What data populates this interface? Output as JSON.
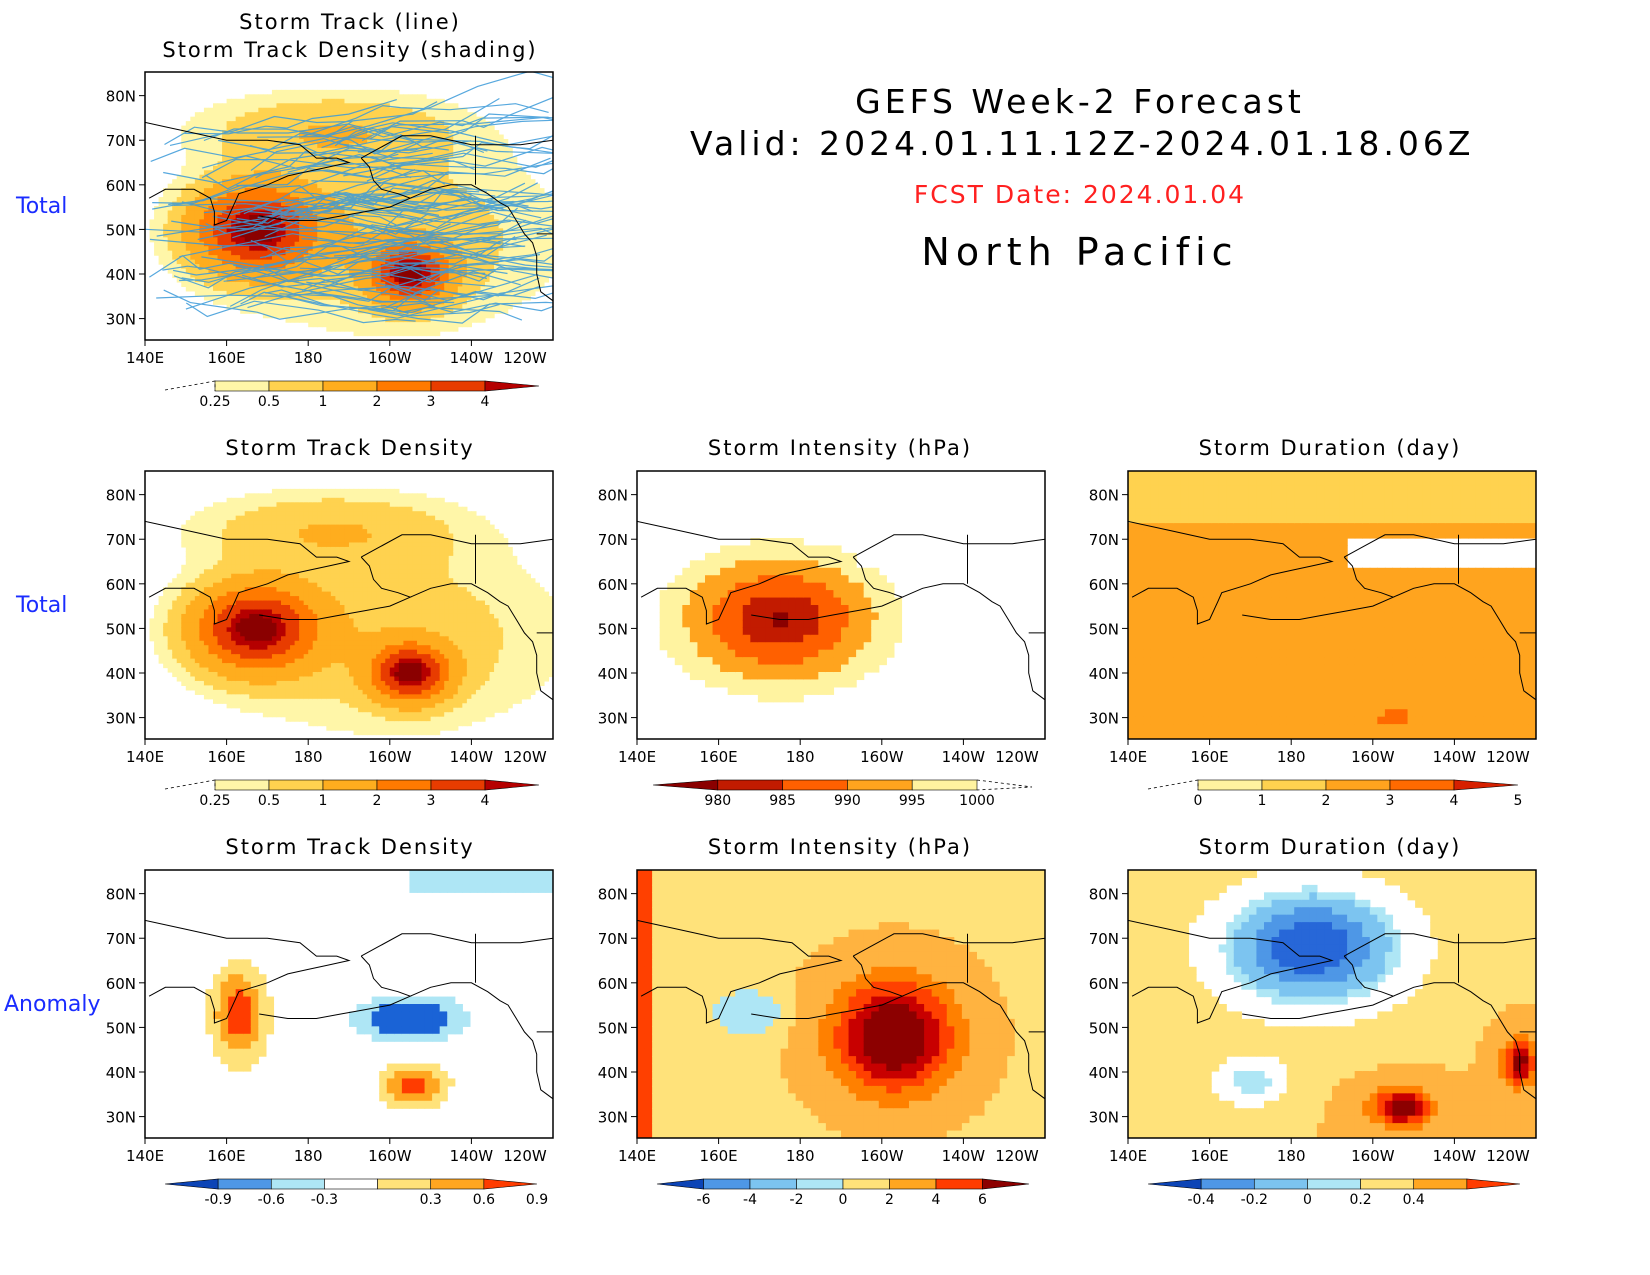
{
  "header": {
    "line1": "GEFS Week-2 Forecast",
    "line2": "Valid: 2024.01.11.12Z-2024.01.18.06Z",
    "fcst": "FCST Date: 2024.01.04",
    "region": "North Pacific"
  },
  "row_labels": {
    "top": "Total",
    "middle": "Total",
    "bottom": "Anomaly"
  },
  "axes": {
    "lat_labels": [
      "80N",
      "70N",
      "60N",
      "50N",
      "40N",
      "30N"
    ],
    "lon_labels": [
      "140E",
      "160E",
      "180",
      "160W",
      "140W",
      "120W"
    ]
  },
  "colors": {
    "track_line": "#3a9ad9",
    "density": [
      "#fff6a8",
      "#ffd24f",
      "#ffad1e",
      "#ff7a00",
      "#e83c00",
      "#b50000",
      "#8a0000"
    ],
    "anomaly_warm": [
      "#ffe27a",
      "#ffb340",
      "#ff8000",
      "#ff4000",
      "#c80000",
      "#8c0000"
    ],
    "anomaly_cool": [
      "#aee6f5",
      "#7cc4f0",
      "#4e97e6",
      "#2767d8",
      "#0c44b6"
    ]
  },
  "chart_data": [
    {
      "id": "storm-track-total",
      "type": "heatmap",
      "title": "Storm Track (line)\nStorm Track Density (shading)",
      "title_lines": [
        "Storm Track (line)",
        "Storm Track Density (shading)"
      ],
      "row": "Total",
      "colorbar": [
        "0.25",
        "0.5",
        "1",
        "2",
        "3",
        "4"
      ],
      "centers": [
        {
          "name": "west-pacific",
          "lon": 167,
          "lat": 50,
          "peak": 4.5
        },
        {
          "name": "gulf-of-alaska",
          "lon": 205,
          "lat": 40,
          "peak": 4.3
        }
      ]
    },
    {
      "id": "density-total",
      "type": "heatmap",
      "title": "Storm Track Density",
      "row": "Total",
      "colorbar": [
        "0.25",
        "0.5",
        "1",
        "2",
        "3",
        "4"
      ],
      "centers": [
        {
          "name": "west-pacific",
          "lon": 167,
          "lat": 50,
          "peak": 4.5
        },
        {
          "name": "gulf-of-alaska",
          "lon": 205,
          "lat": 40,
          "peak": 4.3
        }
      ]
    },
    {
      "id": "intensity-total",
      "type": "heatmap",
      "title": "Storm Intensity (hPa)",
      "row": "Total",
      "colorbar": [
        "980",
        "985",
        "990",
        "995",
        "1000"
      ],
      "minimum": {
        "lon": 175,
        "lat": 52,
        "value": 978
      }
    },
    {
      "id": "duration-total",
      "type": "heatmap",
      "title": "Storm Duration (day)",
      "row": "Total",
      "colorbar": [
        "0",
        "1",
        "2",
        "3",
        "4",
        "5"
      ],
      "maximum": {
        "lon": 205,
        "lat": 30,
        "value": 3.4
      }
    },
    {
      "id": "density-anomaly",
      "type": "heatmap",
      "title": "Storm Track Density",
      "row": "Anomaly",
      "colorbar": [
        "-0.9",
        "-0.6",
        "-0.3",
        "0.3",
        "0.6",
        "0.9"
      ],
      "centers": [
        {
          "name": "west-positive",
          "lon": 163,
          "lat": 53,
          "value": 1.0
        },
        {
          "name": "north-negative",
          "lon": 205,
          "lat": 52,
          "value": -1.0
        },
        {
          "name": "south-positive",
          "lon": 206,
          "lat": 37,
          "value": 1.0
        }
      ]
    },
    {
      "id": "intensity-anomaly",
      "type": "heatmap",
      "title": "Storm Intensity (hPa)",
      "row": "Anomaly",
      "colorbar": [
        "-6",
        "-4",
        "-2",
        "0",
        "2",
        "4",
        "6"
      ],
      "centers": [
        {
          "name": "central-positive",
          "lon": 203,
          "lat": 48,
          "value": 7
        },
        {
          "name": "west-negative",
          "lon": 167,
          "lat": 53,
          "value": -2
        }
      ]
    },
    {
      "id": "duration-anomaly",
      "type": "heatmap",
      "title": "Storm Duration (day)",
      "row": "Anomaly",
      "colorbar": [
        "-0.4",
        "-0.2",
        "0",
        "0.2",
        "0.4"
      ],
      "centers": [
        {
          "name": "north-negative",
          "lon": 185,
          "lat": 68,
          "value": -0.45
        },
        {
          "name": "south-positive",
          "lon": 207,
          "lat": 32,
          "value": 0.45
        }
      ]
    }
  ]
}
